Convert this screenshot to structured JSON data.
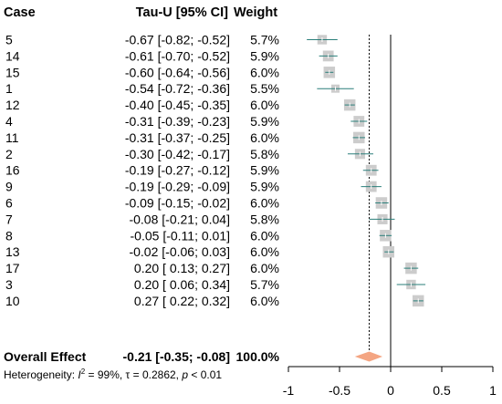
{
  "chart_data": {
    "type": "forest",
    "columns": {
      "study": "Case",
      "effect": "Tau-U [95% CI]",
      "weight": "Weight"
    },
    "studies": [
      {
        "label": "5",
        "est": -0.67,
        "lo": -0.82,
        "hi": -0.52,
        "weight": 5.7,
        "effect_text": "-0.67 [-0.82; -0.52]",
        "weight_text": "5.7%"
      },
      {
        "label": "14",
        "est": -0.61,
        "lo": -0.7,
        "hi": -0.52,
        "weight": 5.9,
        "effect_text": "-0.61 [-0.70; -0.52]",
        "weight_text": "5.9%"
      },
      {
        "label": "15",
        "est": -0.6,
        "lo": -0.64,
        "hi": -0.56,
        "weight": 6.0,
        "effect_text": "-0.60 [-0.64; -0.56]",
        "weight_text": "6.0%"
      },
      {
        "label": "1",
        "est": -0.54,
        "lo": -0.72,
        "hi": -0.36,
        "weight": 5.5,
        "effect_text": "-0.54 [-0.72; -0.36]",
        "weight_text": "5.5%"
      },
      {
        "label": "12",
        "est": -0.4,
        "lo": -0.45,
        "hi": -0.35,
        "weight": 6.0,
        "effect_text": "-0.40 [-0.45; -0.35]",
        "weight_text": "6.0%"
      },
      {
        "label": "4",
        "est": -0.31,
        "lo": -0.39,
        "hi": -0.23,
        "weight": 5.9,
        "effect_text": "-0.31 [-0.39; -0.23]",
        "weight_text": "5.9%"
      },
      {
        "label": "11",
        "est": -0.31,
        "lo": -0.37,
        "hi": -0.25,
        "weight": 6.0,
        "effect_text": "-0.31 [-0.37; -0.25]",
        "weight_text": "6.0%"
      },
      {
        "label": "2",
        "est": -0.3,
        "lo": -0.42,
        "hi": -0.17,
        "weight": 5.8,
        "effect_text": "-0.30 [-0.42; -0.17]",
        "weight_text": "5.8%"
      },
      {
        "label": "16",
        "est": -0.19,
        "lo": -0.27,
        "hi": -0.12,
        "weight": 5.9,
        "effect_text": "-0.19 [-0.27; -0.12]",
        "weight_text": "5.9%"
      },
      {
        "label": "9",
        "est": -0.19,
        "lo": -0.29,
        "hi": -0.09,
        "weight": 5.9,
        "effect_text": "-0.19 [-0.29; -0.09]",
        "weight_text": "5.9%"
      },
      {
        "label": "6",
        "est": -0.09,
        "lo": -0.15,
        "hi": -0.02,
        "weight": 6.0,
        "effect_text": "-0.09 [-0.15; -0.02]",
        "weight_text": "6.0%"
      },
      {
        "label": "7",
        "est": -0.08,
        "lo": -0.21,
        "hi": 0.04,
        "weight": 5.8,
        "effect_text": "-0.08 [-0.21; 0.04]",
        "weight_text": "5.8%"
      },
      {
        "label": "8",
        "est": -0.05,
        "lo": -0.11,
        "hi": 0.01,
        "weight": 6.0,
        "effect_text": "-0.05 [-0.11; 0.01]",
        "weight_text": "6.0%"
      },
      {
        "label": "13",
        "est": -0.02,
        "lo": -0.06,
        "hi": 0.03,
        "weight": 6.0,
        "effect_text": "-0.02 [-0.06; 0.03]",
        "weight_text": "6.0%"
      },
      {
        "label": "17",
        "est": 0.2,
        "lo": 0.13,
        "hi": 0.27,
        "weight": 6.0,
        "effect_text": "0.20 [ 0.13; 0.27]",
        "weight_text": "6.0%"
      },
      {
        "label": "3",
        "est": 0.2,
        "lo": 0.06,
        "hi": 0.34,
        "weight": 5.7,
        "effect_text": "0.20 [ 0.06; 0.34]",
        "weight_text": "5.7%"
      },
      {
        "label": "10",
        "est": 0.27,
        "lo": 0.22,
        "hi": 0.32,
        "weight": 6.0,
        "effect_text": "0.27 [ 0.22; 0.32]",
        "weight_text": "6.0%"
      }
    ],
    "overall": {
      "label": "Overall Effect",
      "est": -0.21,
      "lo": -0.35,
      "hi": -0.08,
      "effect_text": "-0.21 [-0.35; -0.08]",
      "weight_text": "100.0%"
    },
    "heterogeneity": {
      "prefix": "Heterogeneity: ",
      "i2_symbol": "I",
      "i2_sup": "2",
      "i2_value": " = 99%, τ = 0.2862, ",
      "p_symbol": "p",
      "p_value": " < 0.01"
    },
    "x_axis": {
      "ticks": [
        -1,
        -0.5,
        0,
        0.5,
        1
      ],
      "tick_labels": [
        "-1",
        "-0.5",
        "0",
        "0.5",
        "1"
      ],
      "xlim": [
        -1,
        1
      ]
    },
    "null_line": 0,
    "colors": {
      "square": "#cccccc",
      "ci_line": "#2a7f7a",
      "diamond": "#f4a582",
      "axis": "#000000"
    }
  }
}
